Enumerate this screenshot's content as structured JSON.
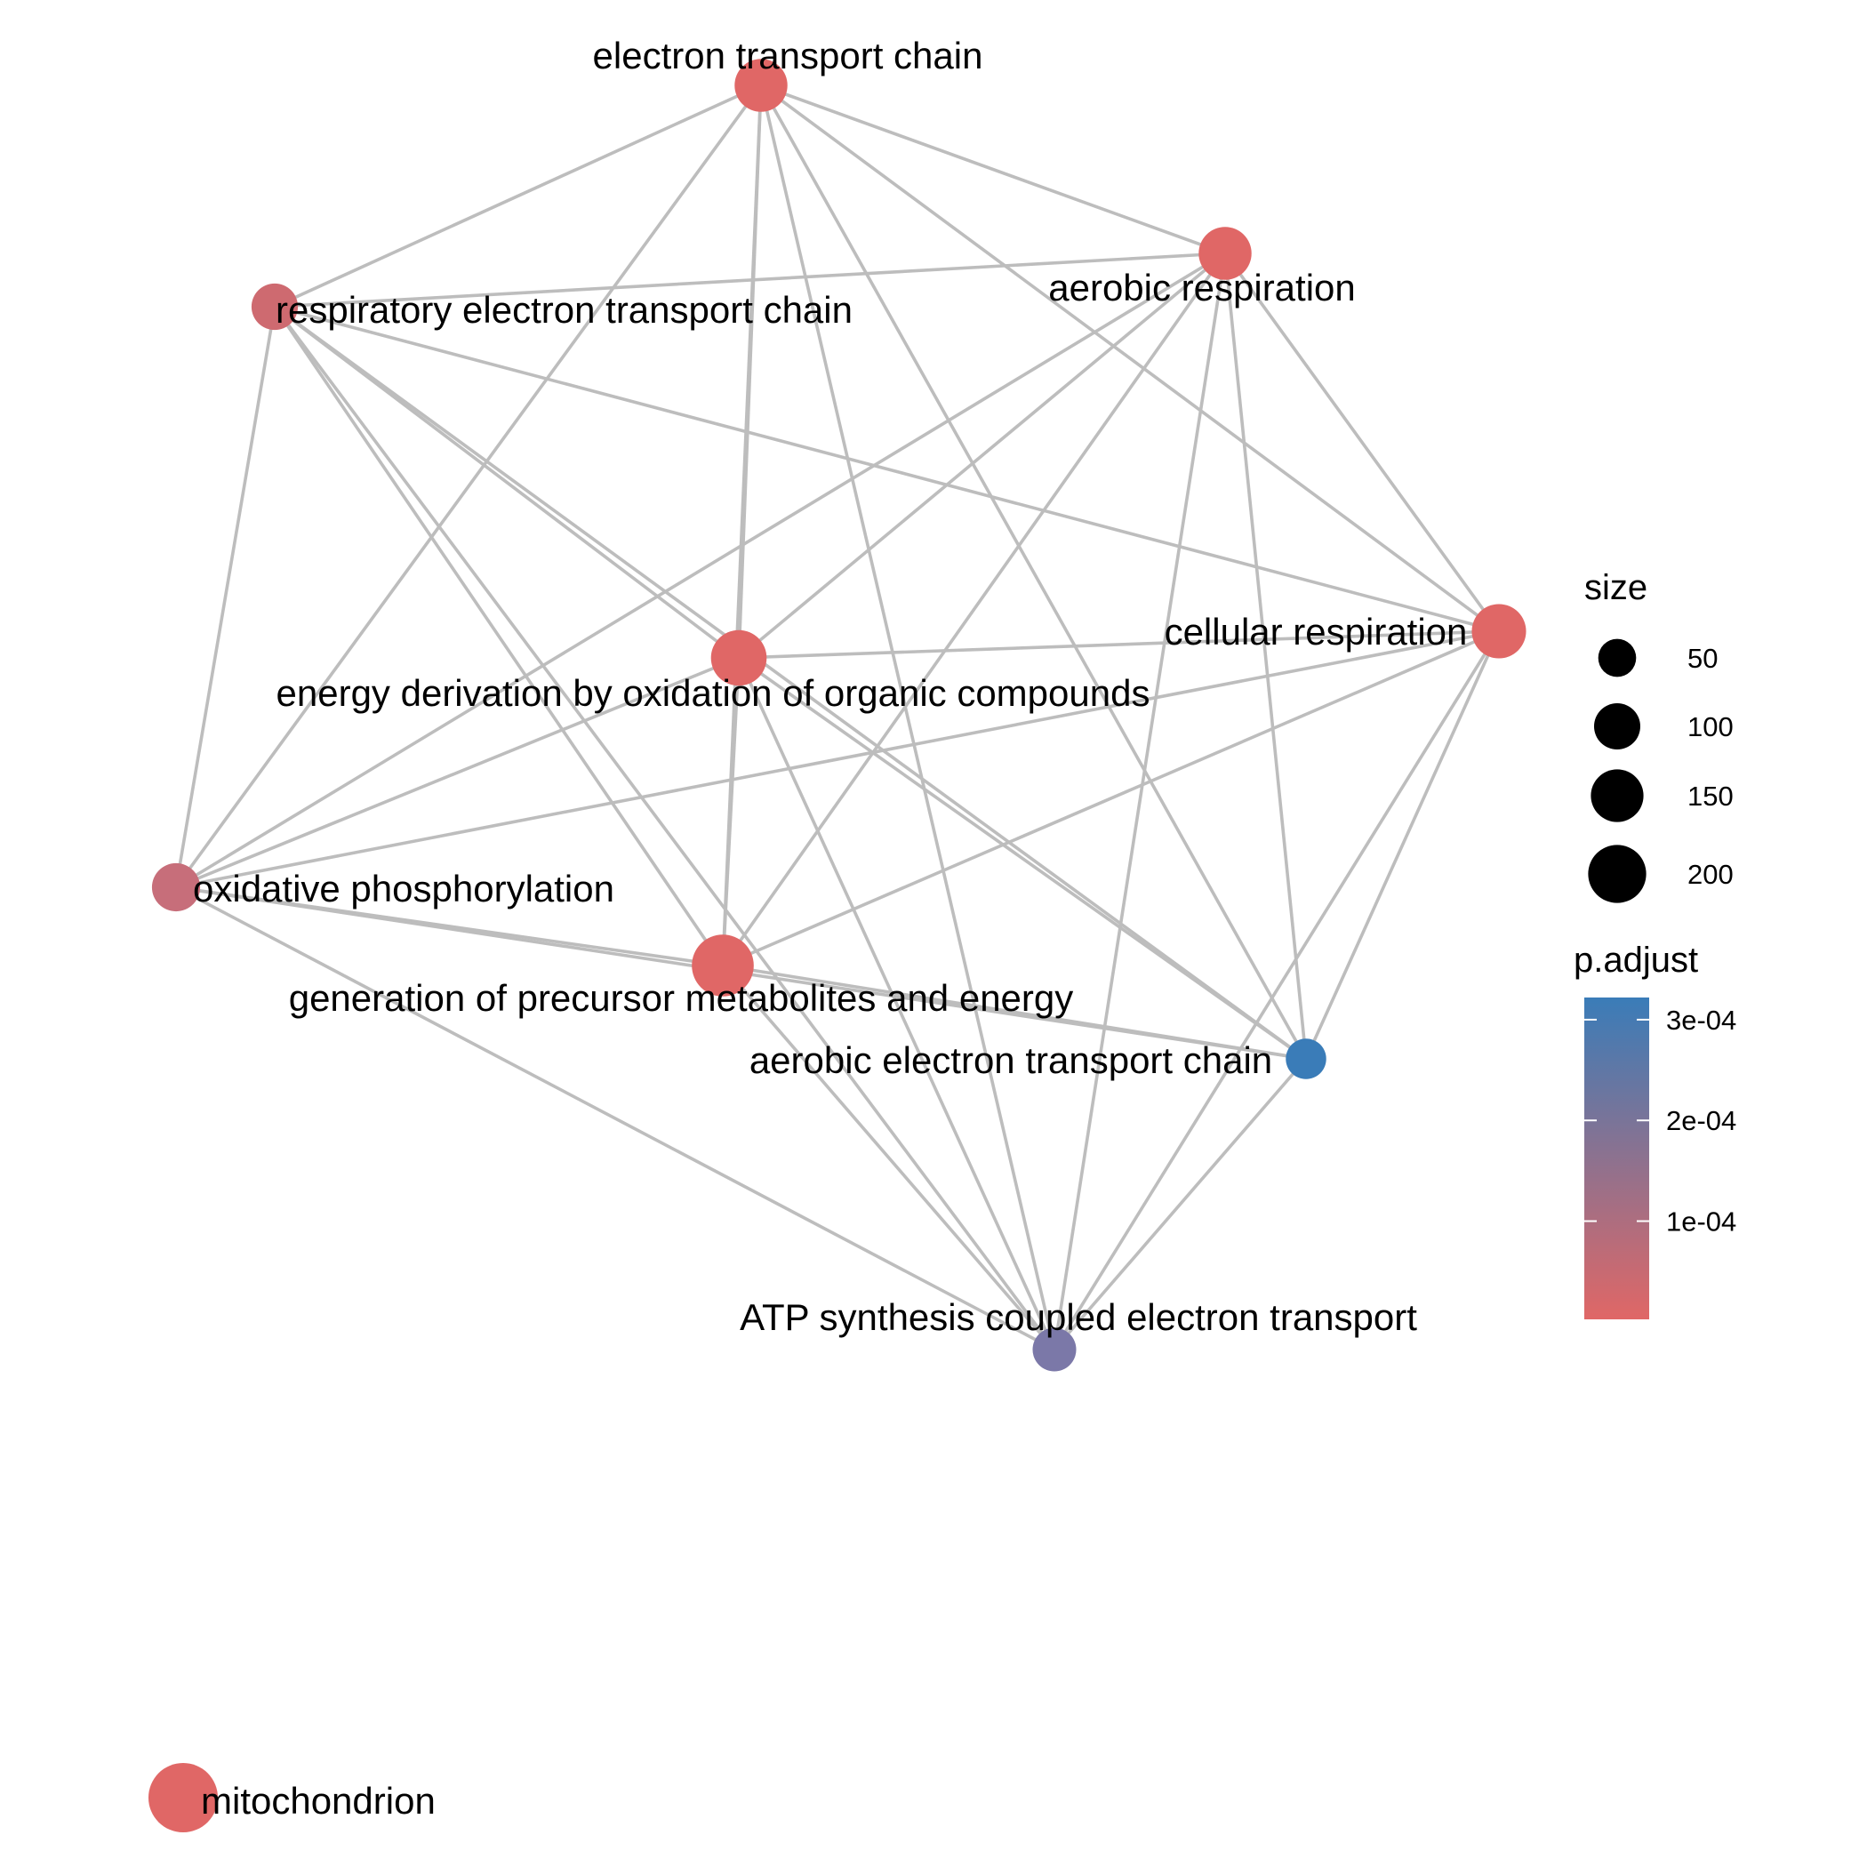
{
  "nodes": [
    {
      "id": "etc",
      "label": "electron transport chain",
      "size": 120,
      "color": "#E06766"
    },
    {
      "id": "aer",
      "label": "aerobic respiration",
      "size": 120,
      "color": "#E06766"
    },
    {
      "id": "retc",
      "label": "respiratory electron transport chain",
      "size": 80,
      "color": "#CE6A70"
    },
    {
      "id": "cell",
      "label": "cellular respiration",
      "size": 130,
      "color": "#E06766"
    },
    {
      "id": "edoc",
      "label": "energy derivation by oxidation of organic compounds",
      "size": 140,
      "color": "#E06766"
    },
    {
      "id": "oxp",
      "label": "oxidative phosphorylation",
      "size": 90,
      "color": "#C76E7A"
    },
    {
      "id": "gpme",
      "label": "generation of precursor metabolites and energy",
      "size": 190,
      "color": "#E06766"
    },
    {
      "id": "aetc",
      "label": "aerobic electron transport chain",
      "size": 50,
      "color": "#3A7CB8"
    },
    {
      "id": "atp",
      "label": "ATP synthesis coupled electron transport",
      "size": 65,
      "color": "#7B78A8"
    },
    {
      "id": "mito",
      "label": "mitochondrion",
      "size": 260,
      "color": "#E06766"
    }
  ],
  "edges": [
    [
      "etc",
      "aer"
    ],
    [
      "etc",
      "retc"
    ],
    [
      "etc",
      "cell"
    ],
    [
      "etc",
      "edoc"
    ],
    [
      "etc",
      "oxp"
    ],
    [
      "etc",
      "gpme"
    ],
    [
      "etc",
      "aetc"
    ],
    [
      "etc",
      "atp"
    ],
    [
      "aer",
      "retc"
    ],
    [
      "aer",
      "cell"
    ],
    [
      "aer",
      "edoc"
    ],
    [
      "aer",
      "oxp"
    ],
    [
      "aer",
      "gpme"
    ],
    [
      "aer",
      "aetc"
    ],
    [
      "aer",
      "atp"
    ],
    [
      "retc",
      "cell"
    ],
    [
      "retc",
      "edoc"
    ],
    [
      "retc",
      "oxp"
    ],
    [
      "retc",
      "gpme"
    ],
    [
      "retc",
      "aetc"
    ],
    [
      "retc",
      "atp"
    ],
    [
      "cell",
      "edoc"
    ],
    [
      "cell",
      "oxp"
    ],
    [
      "cell",
      "gpme"
    ],
    [
      "cell",
      "aetc"
    ],
    [
      "cell",
      "atp"
    ],
    [
      "edoc",
      "oxp"
    ],
    [
      "edoc",
      "gpme"
    ],
    [
      "edoc",
      "aetc"
    ],
    [
      "edoc",
      "atp"
    ],
    [
      "oxp",
      "gpme"
    ],
    [
      "oxp",
      "aetc"
    ],
    [
      "oxp",
      "atp"
    ],
    [
      "gpme",
      "aetc"
    ],
    [
      "gpme",
      "atp"
    ],
    [
      "aetc",
      "atp"
    ]
  ],
  "legend": {
    "size_title": "size",
    "size_entries": [
      {
        "value": 50,
        "label": "50"
      },
      {
        "value": 100,
        "label": "100"
      },
      {
        "value": 150,
        "label": "150"
      },
      {
        "value": 200,
        "label": "200"
      }
    ],
    "color_title": "p.adjust",
    "color_ticks": [
      {
        "value": 0.0003,
        "label": "3e-04"
      },
      {
        "value": 0.0002,
        "label": "2e-04"
      },
      {
        "value": 0.0001,
        "label": "1e-04"
      }
    ],
    "color_range": [
      2.5e-06,
      0.000322
    ],
    "color_low": "#E06766",
    "color_high": "#3A7CB8"
  }
}
